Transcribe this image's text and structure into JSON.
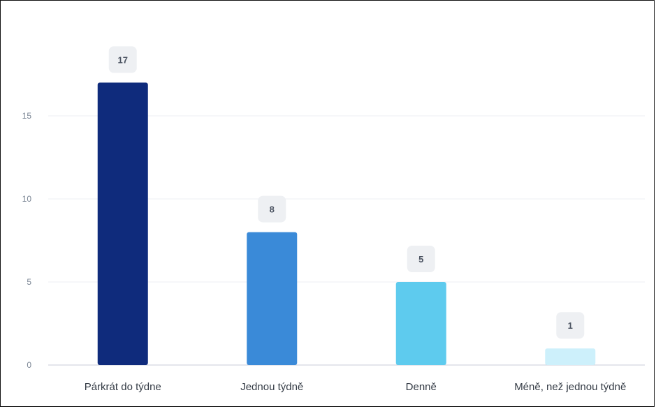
{
  "chart_data": {
    "type": "bar",
    "categories": [
      "Párkrát do týdne",
      "Jednou týdně",
      "Denně",
      "Méně, než jednou týdně"
    ],
    "values": [
      17,
      8,
      5,
      1
    ],
    "colors": [
      "#0f2b7c",
      "#3a8ad8",
      "#5ecbee",
      "#cdf0fb"
    ],
    "ylim": [
      0,
      17
    ],
    "yticks": [
      0,
      5,
      10,
      15
    ],
    "grid": true,
    "data_labels": [
      "17",
      "8",
      "5",
      "1"
    ]
  }
}
